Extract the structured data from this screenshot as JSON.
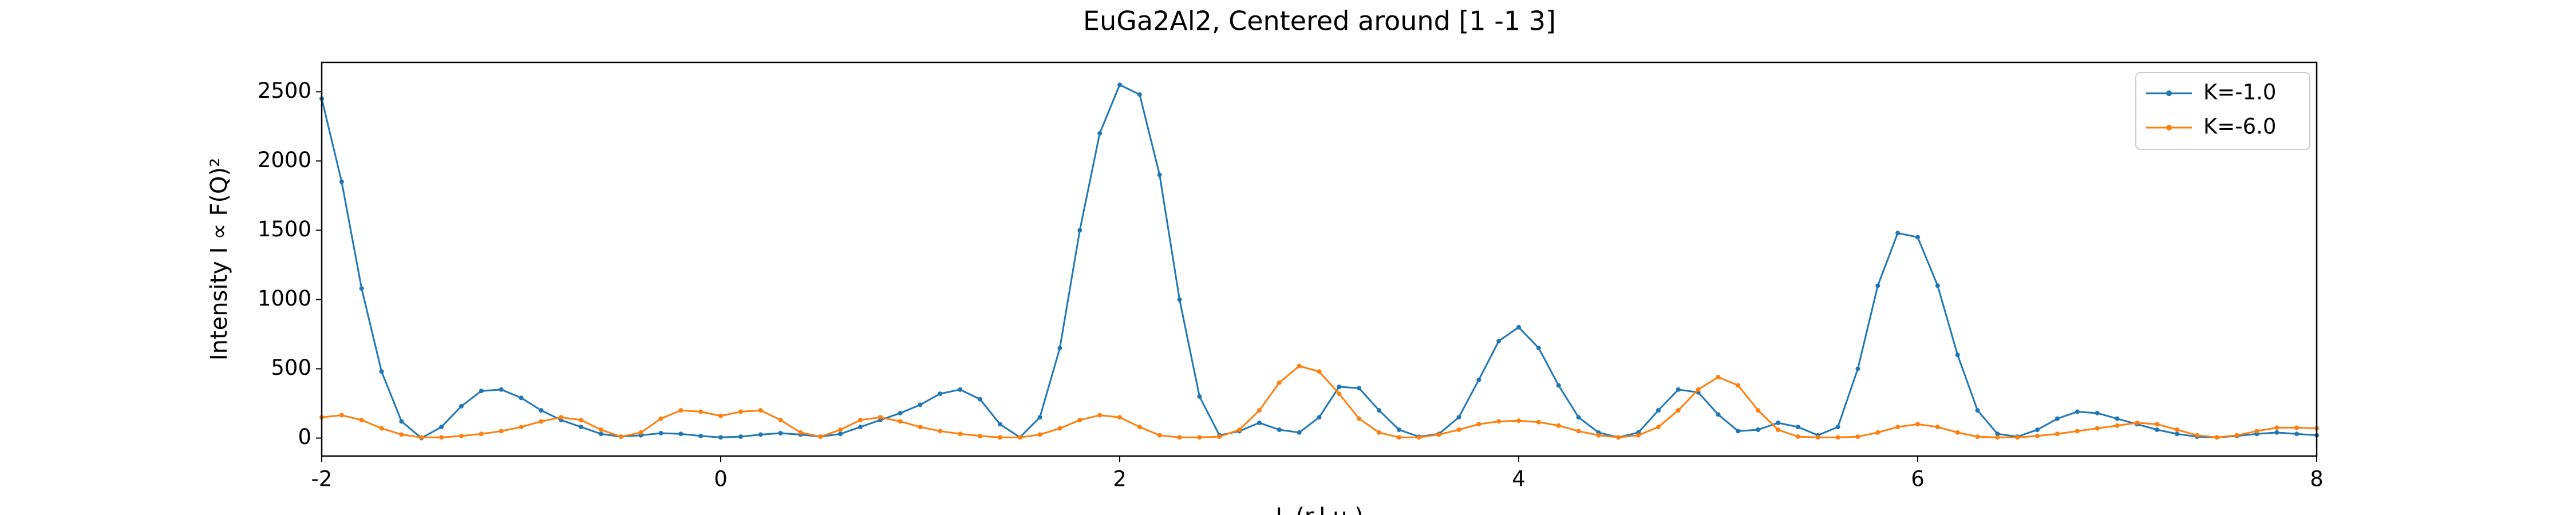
{
  "chart_data": {
    "type": "line",
    "title": "EuGa2Al2, Centered around [1 -1 3]",
    "xlabel": "L (r.l.u.)",
    "ylabel": "Intensity I ∝ F(Q)²",
    "x": [
      -2,
      -1.9,
      -1.8,
      -1.7,
      -1.6,
      -1.5,
      -1.4,
      -1.3,
      -1.2,
      -1.1,
      -1,
      -0.9,
      -0.8,
      -0.7,
      -0.6,
      -0.5,
      -0.4,
      -0.3,
      -0.2,
      -0.1,
      0,
      0.1,
      0.2,
      0.3,
      0.4,
      0.5,
      0.6,
      0.7,
      0.8,
      0.9,
      1,
      1.1,
      1.2,
      1.3,
      1.4,
      1.5,
      1.6,
      1.7,
      1.8,
      1.9,
      2,
      2.1,
      2.2,
      2.3,
      2.4,
      2.5,
      2.6,
      2.7,
      2.8,
      2.9,
      3,
      3.1,
      3.2,
      3.3,
      3.4,
      3.5,
      3.6,
      3.7,
      3.8,
      3.9,
      4,
      4.1,
      4.2,
      4.3,
      4.4,
      4.5,
      4.6,
      4.7,
      4.8,
      4.9,
      5,
      5.1,
      5.2,
      5.3,
      5.4,
      5.5,
      5.6,
      5.7,
      5.8,
      5.9,
      6,
      6.1,
      6.2,
      6.3,
      6.4,
      6.5,
      6.6,
      6.7,
      6.8,
      6.9,
      7,
      7.1,
      7.2,
      7.3,
      7.4,
      7.5,
      7.6,
      7.7,
      7.8,
      7.9,
      8
    ],
    "series": [
      {
        "name": "K=-1.0",
        "color": "#1f77b4",
        "values": [
          2450,
          1850,
          1080,
          480,
          120,
          0,
          80,
          230,
          340,
          350,
          290,
          200,
          130,
          80,
          30,
          10,
          20,
          35,
          30,
          15,
          5,
          10,
          25,
          35,
          25,
          10,
          30,
          80,
          130,
          180,
          240,
          320,
          350,
          280,
          100,
          5,
          150,
          650,
          1500,
          2200,
          2550,
          2480,
          1900,
          1000,
          300,
          20,
          50,
          110,
          60,
          40,
          150,
          370,
          360,
          200,
          60,
          10,
          30,
          150,
          420,
          700,
          800,
          650,
          380,
          150,
          40,
          5,
          40,
          200,
          350,
          330,
          170,
          50,
          60,
          110,
          80,
          20,
          80,
          500,
          1100,
          1480,
          1450,
          1100,
          600,
          200,
          30,
          10,
          60,
          140,
          190,
          180,
          140,
          100,
          60,
          30,
          10,
          5,
          15,
          30,
          40,
          30,
          20
        ]
      },
      {
        "name": "K=-6.0",
        "color": "#ff7f0e",
        "values": [
          150,
          165,
          130,
          70,
          25,
          5,
          5,
          15,
          30,
          50,
          80,
          120,
          150,
          130,
          60,
          10,
          40,
          140,
          200,
          190,
          160,
          190,
          200,
          130,
          40,
          10,
          60,
          130,
          150,
          120,
          80,
          50,
          30,
          15,
          5,
          5,
          25,
          70,
          130,
          165,
          150,
          80,
          20,
          5,
          5,
          10,
          60,
          200,
          400,
          520,
          480,
          320,
          140,
          40,
          5,
          5,
          25,
          60,
          100,
          120,
          125,
          115,
          90,
          50,
          20,
          5,
          20,
          80,
          200,
          350,
          440,
          380,
          200,
          60,
          10,
          5,
          5,
          10,
          40,
          80,
          100,
          80,
          40,
          10,
          5,
          5,
          15,
          30,
          50,
          70,
          90,
          110,
          100,
          60,
          20,
          5,
          20,
          50,
          75,
          75,
          70
        ]
      }
    ],
    "xlim": [
      -2,
      8
    ],
    "ylim": [
      -130,
      2712
    ],
    "xticks": [
      -2,
      0,
      2,
      4,
      6,
      8
    ],
    "yticks": [
      0,
      500,
      1000,
      1500,
      2000,
      2500
    ],
    "legend": "upper right"
  }
}
